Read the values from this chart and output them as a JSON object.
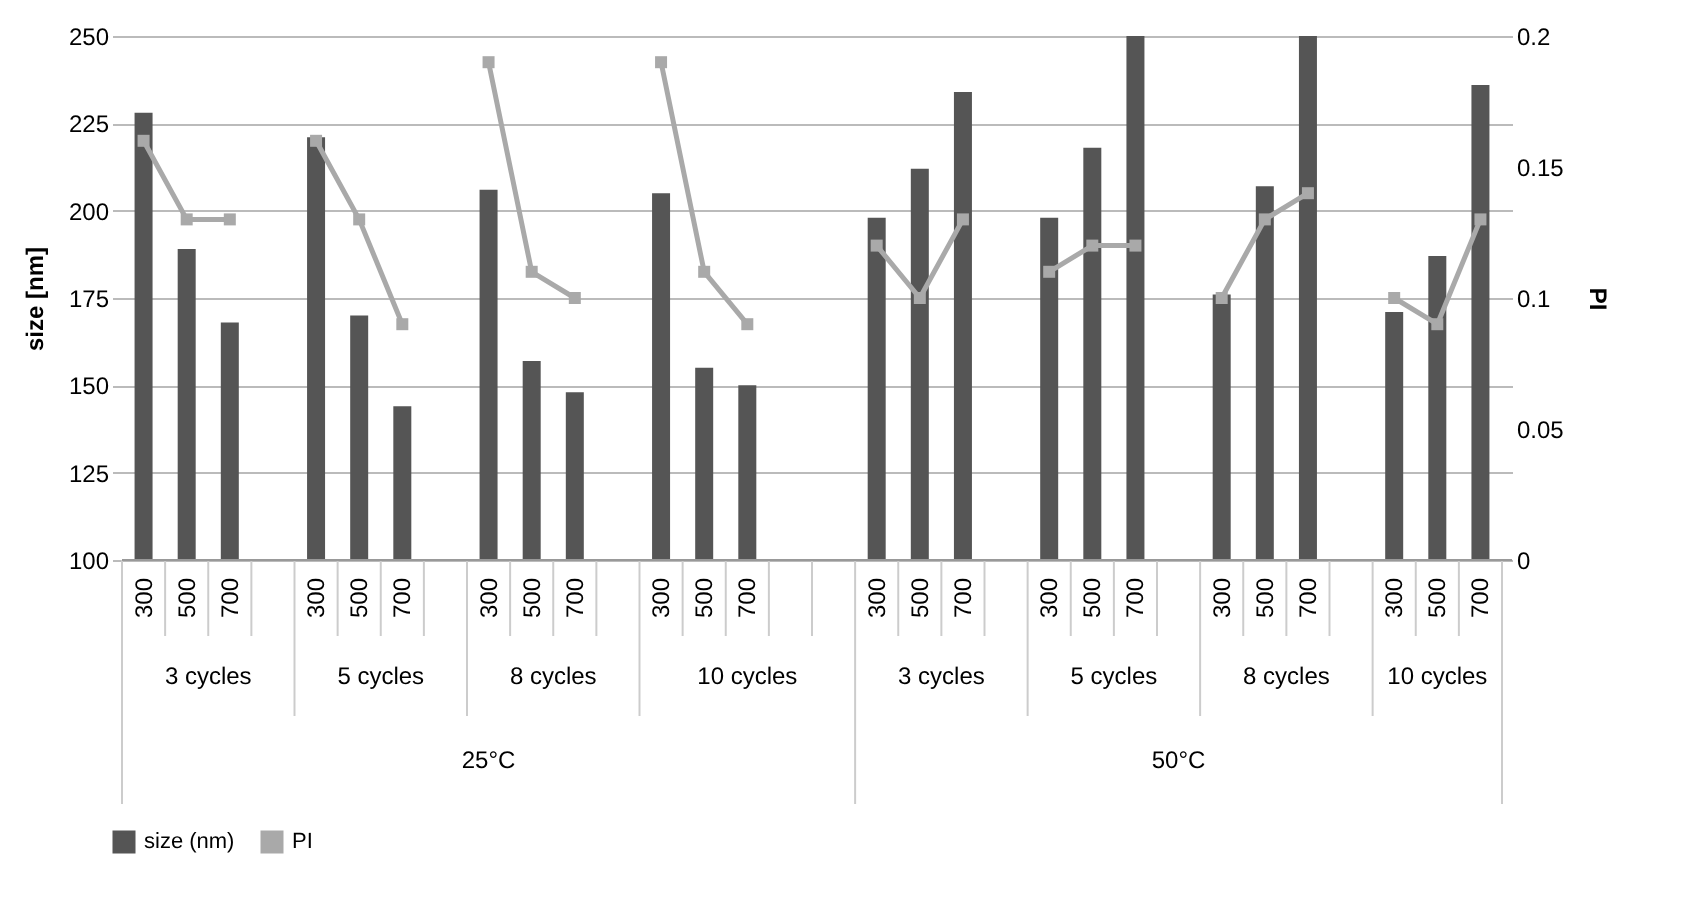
{
  "chart_data": {
    "type": "bar",
    "ylabel": "size [nm]",
    "y2label": "PI",
    "categories": [
      "300",
      "500",
      "700",
      null,
      "300",
      "500",
      "700",
      null,
      "300",
      "500",
      "700",
      null,
      "300",
      "500",
      "700",
      null,
      null,
      "300",
      "500",
      "700",
      null,
      "300",
      "500",
      "700",
      null,
      "300",
      "500",
      "700",
      null,
      "300",
      "500",
      "700"
    ],
    "series": [
      {
        "name": "size (nm)",
        "color": "#555555",
        "values": [
          228,
          189,
          168,
          null,
          221,
          170,
          144,
          null,
          206,
          157,
          148,
          null,
          205,
          155,
          150,
          null,
          null,
          198,
          212,
          234,
          null,
          198,
          218,
          250,
          null,
          176,
          207,
          250,
          null,
          171,
          187,
          236
        ]
      },
      {
        "name": "PI",
        "type": "line",
        "axis": "y2",
        "color": "#a9a9a9",
        "values": [
          0.16,
          0.13,
          0.13,
          null,
          0.16,
          0.13,
          0.09,
          null,
          0.19,
          0.11,
          0.1,
          null,
          0.19,
          0.11,
          0.09,
          null,
          null,
          0.12,
          0.1,
          0.13,
          null,
          0.11,
          0.12,
          0.12,
          null,
          0.1,
          0.13,
          0.14,
          null,
          0.1,
          0.09,
          0.13
        ]
      }
    ],
    "ylim": [
      100,
      250
    ],
    "yticks": [
      100,
      125,
      150,
      175,
      200,
      225,
      250
    ],
    "y2lim": [
      0,
      0.2
    ],
    "y2ticks": [
      0,
      0.05,
      0.1,
      0.15,
      0.2
    ],
    "grid": "y",
    "legend": "bottom",
    "marker": "square",
    "annotations": [
      "3 cycles",
      "5 cycles",
      "8 cycles",
      "10 cycles",
      "3 cycles",
      "5 cycles",
      "8 cycles",
      "10 cycles",
      "25°C",
      "50°C"
    ]
  }
}
